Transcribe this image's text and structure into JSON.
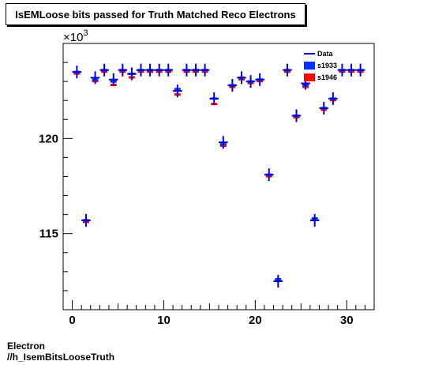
{
  "title": "IsEMLoose bits passed for Truth Matched Reco Electrons",
  "footer_line1": "Electron",
  "footer_line2": "//h_IsemBitsLooseTruth",
  "y_multiplier": "×10",
  "y_multiplier_exp": "3",
  "colors": {
    "data": "#0000cc",
    "s1933": "#0033ff",
    "s1946": "#ff0000",
    "axis": "#000000"
  },
  "chart_data": {
    "type": "scatter",
    "title": "IsEMLoose bits passed for Truth Matched Reco Electrons",
    "xlabel": "",
    "ylabel": "",
    "xlim": [
      -1,
      33
    ],
    "ylim": [
      111000,
      125000
    ],
    "x_ticks": [
      0,
      10,
      20,
      30
    ],
    "y_ticks": [
      115000,
      120000
    ],
    "y_tick_labels": [
      "115",
      "120"
    ],
    "legend_position": "top-right",
    "grid": false,
    "x": [
      0.5,
      1.5,
      2.5,
      3.5,
      4.5,
      5.5,
      6.5,
      7.5,
      8.5,
      9.5,
      10.5,
      11.5,
      12.5,
      13.5,
      14.5,
      15.5,
      16.5,
      17.5,
      18.5,
      19.5,
      20.5,
      21.5,
      22.5,
      23.5,
      24.5,
      25.5,
      26.5,
      27.5,
      28.5,
      29.5,
      30.5,
      31.5
    ],
    "series": [
      {
        "name": "Data",
        "style": "cross",
        "values": [
          123500,
          115700,
          123200,
          123600,
          123100,
          123600,
          123400,
          123600,
          123600,
          123600,
          123600,
          122500,
          123600,
          123600,
          123600,
          122100,
          119800,
          122800,
          123200,
          123000,
          123100,
          118100,
          112500,
          123600,
          121200,
          122900,
          115700,
          121600,
          122100,
          123600,
          123600,
          123600
        ]
      },
      {
        "name": "s1933",
        "style": "box",
        "values": [
          123500,
          115700,
          123100,
          123600,
          123000,
          123600,
          123400,
          123600,
          123600,
          123600,
          123600,
          122600,
          123600,
          123600,
          123600,
          122100,
          119700,
          122800,
          123200,
          123000,
          123100,
          118100,
          112600,
          123600,
          121200,
          122800,
          115800,
          121600,
          122100,
          123600,
          123600,
          123600
        ]
      },
      {
        "name": "s1946",
        "style": "box",
        "values": [
          123500,
          115700,
          123100,
          123600,
          122900,
          123600,
          123300,
          123600,
          123600,
          123600,
          123600,
          122400,
          123600,
          123600,
          123600,
          121900,
          119700,
          122800,
          123200,
          123000,
          123100,
          118100,
          112600,
          123600,
          121200,
          122800,
          115800,
          121600,
          122100,
          123600,
          123600,
          123600
        ]
      }
    ]
  }
}
